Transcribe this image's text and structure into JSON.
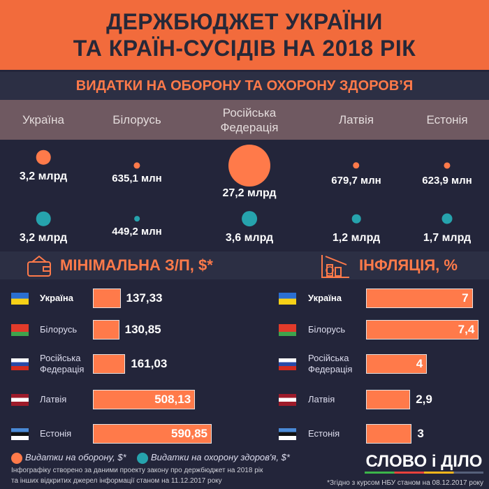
{
  "header": {
    "title_line1": "ДЕРЖБЮДЖЕТ УКРАЇНИ",
    "title_line2": "ТА КРАЇН-СУСІДІВ НА 2018 РІК"
  },
  "colors": {
    "accent": "#ff7a4a",
    "health": "#26a3ad",
    "background": "#23253a",
    "header": "#f26b3c"
  },
  "chart_data": [
    {
      "type": "bubble",
      "title": "ВИДАТКИ НА ОБОРОНУ ТА ОХОРОНУ ЗДОРОВ’Я",
      "categories": [
        "Україна",
        "Білорусь",
        "Російська Федерація",
        "Латвія",
        "Естонія"
      ],
      "series": [
        {
          "name": "Видатки на оборону, $*",
          "color": "#ff7a4a",
          "values": [
            3200,
            635.1,
            27200,
            679.7,
            623.9
          ],
          "unit": "млн $",
          "labels": [
            "3,2 млрд",
            "635,1 млн",
            "27,2 млрд",
            "679,7 млн",
            "623,9 млн"
          ]
        },
        {
          "name": "Видатки на охорону здоров'я, $*",
          "color": "#26a3ad",
          "values": [
            3200,
            449.2,
            3600,
            1200,
            1700
          ],
          "unit": "млн $",
          "labels": [
            "3,2 млрд",
            "449,2 млн",
            "3,6 млрд",
            "1,2 млрд",
            "1,7 млрд"
          ]
        }
      ]
    },
    {
      "type": "bar",
      "title": "МІНІМАЛЬНА З/П, $*",
      "categories": [
        "Україна",
        "Білорусь",
        "Російська Федерація",
        "Латвія",
        "Естонія"
      ],
      "values": [
        137.33,
        130.85,
        161.03,
        508.13,
        590.85
      ],
      "labels": [
        "137,33",
        "130,85",
        "161,03",
        "508,13",
        "590,85"
      ]
    },
    {
      "type": "bar",
      "title": "ІНФЛЯЦІЯ, %",
      "categories": [
        "Україна",
        "Білорусь",
        "Російська Федерація",
        "Латвія",
        "Естонія"
      ],
      "values": [
        7,
        7.4,
        4,
        2.9,
        3
      ],
      "labels": [
        "7",
        "7,4",
        "4",
        "2,9",
        "3"
      ]
    }
  ],
  "countries_wrapped": [
    "Україна",
    "Білорусь",
    "Російська\nФедерація",
    "Латвія",
    "Естонія"
  ],
  "footer": {
    "legend_defense": "Видатки на оборону, $*",
    "legend_health": "Видатки на охорону здоров'я, $*",
    "note_line1": "Інфографіку створено за даними проекту закону про держбюджет на 2018 рік",
    "note_line2": "та інших відкритих джерел інформації станом на 11.12.2017 року",
    "logo": "СЛОВО і ДІЛО",
    "footnote": "*Згідно з курсом НБУ станом на 08.12.2017 року"
  }
}
